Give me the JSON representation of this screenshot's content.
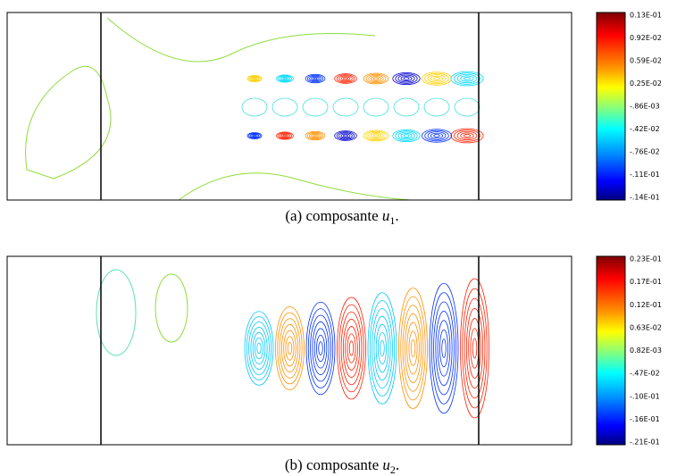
{
  "figures": [
    {
      "label": "(a)",
      "word": "composante",
      "symbol": "u",
      "index": "1",
      "punct": ".",
      "colorbar_labels": [
        "0.13E-01",
        "0.92E-02",
        "0.59E-02",
        "0.25E-02",
        "-.86E-03",
        "-.42E-02",
        "-.76E-02",
        "-.11E-01",
        "-.14E-01"
      ]
    },
    {
      "label": "(b)",
      "word": "composante",
      "symbol": "u",
      "index": "2",
      "punct": ".",
      "colorbar_labels": [
        "0.23E-01",
        "0.17E-01",
        "0.12E-01",
        "0.63E-02",
        "0.82E-03",
        "-.47E-02",
        "-.10E-01",
        "-.16E-01",
        "-.21E-01"
      ]
    }
  ]
}
